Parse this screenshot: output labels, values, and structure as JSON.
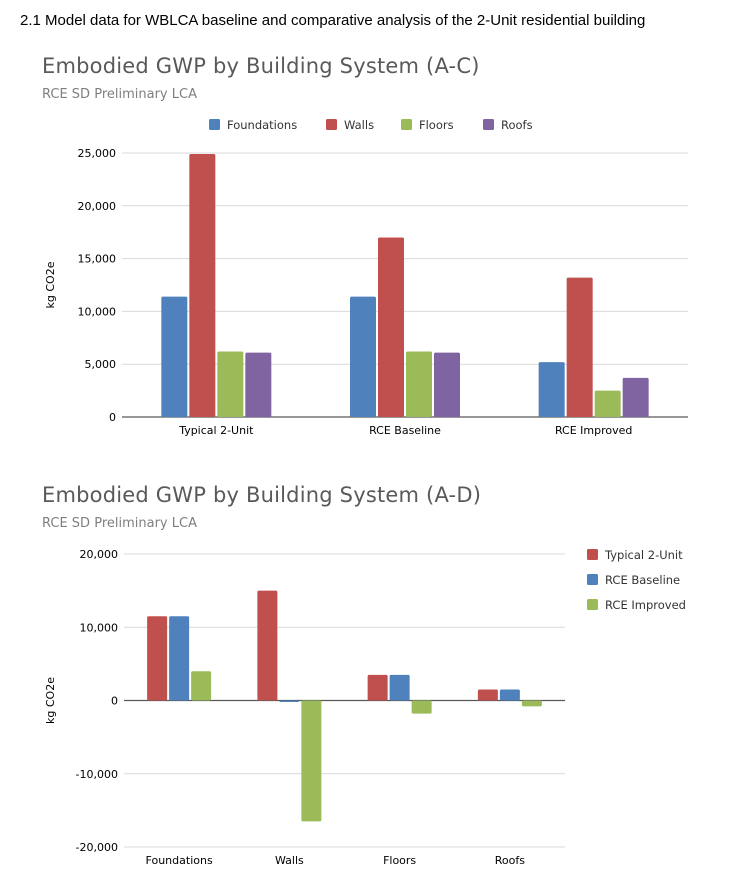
{
  "page": {
    "heading": "2.1 Model data for WBLCA baseline and comparative analysis of the 2-Unit residential building"
  },
  "chart_data": [
    {
      "type": "bar",
      "title": "Embodied GWP by Building System (A-C)",
      "subtitle": "RCE SD Preliminary LCA",
      "ylabel": "kg CO2e",
      "xlabel": "",
      "ylim": [
        0,
        25000
      ],
      "yticks": [
        0,
        5000,
        10000,
        15000,
        20000,
        25000
      ],
      "ytick_labels": [
        "0",
        "5,000",
        "10,000",
        "15,000",
        "20,000",
        "25,000"
      ],
      "grid": true,
      "legend_position": "top",
      "categories": [
        "Typical 2-Unit",
        "RCE Baseline",
        "RCE Improved"
      ],
      "series": [
        {
          "name": "Foundations",
          "color": "#4f81bd",
          "values": [
            11400,
            11400,
            5200
          ]
        },
        {
          "name": "Walls",
          "color": "#c0504d",
          "values": [
            24900,
            17000,
            13200
          ]
        },
        {
          "name": "Floors",
          "color": "#9bbb59",
          "values": [
            6200,
            6200,
            2500
          ]
        },
        {
          "name": "Roofs",
          "color": "#8064a2",
          "values": [
            6100,
            6100,
            3700
          ]
        }
      ]
    },
    {
      "type": "bar",
      "title": "Embodied GWP by Building System (A-D)",
      "subtitle": "RCE SD Preliminary LCA",
      "ylabel": "kg CO2e",
      "xlabel": "",
      "ylim": [
        -20000,
        20000
      ],
      "yticks": [
        -20000,
        -10000,
        0,
        10000,
        20000
      ],
      "ytick_labels": [
        "-20,000",
        "-10,000",
        "0",
        "10,000",
        "20,000"
      ],
      "grid": true,
      "legend_position": "right",
      "categories": [
        "Foundations",
        "Walls",
        "Floors",
        "Roofs"
      ],
      "series": [
        {
          "name": "Typical 2-Unit",
          "color": "#c0504d",
          "values": [
            11500,
            15000,
            3500,
            1500
          ]
        },
        {
          "name": "RCE Baseline",
          "color": "#4f81bd",
          "values": [
            11500,
            -200,
            3500,
            1500
          ]
        },
        {
          "name": "RCE Improved",
          "color": "#9bbb59",
          "values": [
            4000,
            -16500,
            -1800,
            -800
          ]
        }
      ]
    }
  ]
}
